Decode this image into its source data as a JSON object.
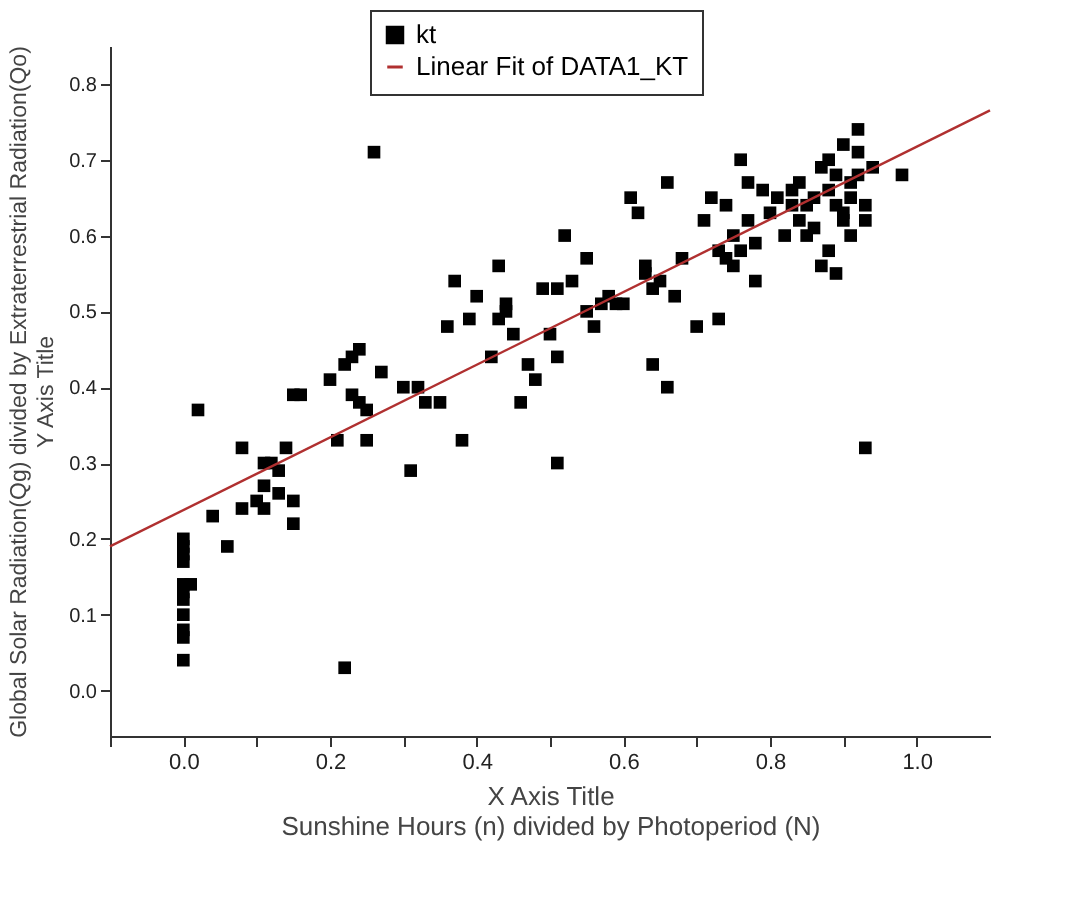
{
  "chart_data": {
    "type": "scatter",
    "xlabel": [
      "X Axis Title",
      "Sunshine Hours (n) divided by Photoperiod (N)"
    ],
    "ylabel": [
      "Global Solar Radiation(Qg) divided by Extraterrestrial Radiation(Qo)",
      "Y Axis Title"
    ],
    "xlim": [
      -0.1,
      1.1
    ],
    "ylim": [
      -0.06,
      0.85
    ],
    "xticks": [
      {
        "value": -0.1,
        "label": null
      },
      {
        "value": 0,
        "label": "0.0"
      },
      {
        "value": 0.1,
        "label": null
      },
      {
        "value": 0.2,
        "label": "0.2"
      },
      {
        "value": 0.3,
        "label": null
      },
      {
        "value": 0.4,
        "label": "0.4"
      },
      {
        "value": 0.5,
        "label": null
      },
      {
        "value": 0.6,
        "label": "0.6"
      },
      {
        "value": 0.7,
        "label": null
      },
      {
        "value": 0.8,
        "label": "0.8"
      },
      {
        "value": 0.9,
        "label": null
      },
      {
        "value": 1,
        "label": "1.0"
      }
    ],
    "yticks": [
      {
        "value": 0,
        "label": "0.0"
      },
      0.1,
      0.2,
      0.3,
      0.4,
      0.5,
      0.6,
      0.7,
      0.8
    ],
    "grid": false,
    "legend": "top",
    "series": [
      {
        "name": "kt",
        "type": "scatter",
        "marker": "square",
        "color": "#000000",
        "x": [
          0,
          0,
          0,
          0,
          0,
          0,
          0,
          0,
          0,
          0,
          0,
          0.01,
          0.02,
          0.04,
          0.06,
          0.08,
          0.08,
          0.1,
          0.11,
          0.11,
          0.11,
          0.12,
          0.13,
          0.13,
          0.14,
          0.15,
          0.15,
          0.15,
          0.16,
          0.2,
          0.21,
          0.22,
          0.23,
          0.24,
          0.22,
          0.23,
          0.24,
          0.25,
          0.25,
          0.26,
          0.27,
          0.3,
          0.31,
          0.32,
          0.33,
          0.35,
          0.36,
          0.37,
          0.38,
          0.39,
          0.4,
          0.42,
          0.43,
          0.43,
          0.44,
          0.44,
          0.45,
          0.46,
          0.47,
          0.48,
          0.49,
          0.5,
          0.51,
          0.51,
          0.51,
          0.52,
          0.53,
          0.55,
          0.55,
          0.56,
          0.57,
          0.58,
          0.59,
          0.6,
          0.61,
          0.62,
          0.63,
          0.63,
          0.64,
          0.64,
          0.65,
          0.66,
          0.66,
          0.67,
          0.68,
          0.7,
          0.71,
          0.72,
          0.73,
          0.73,
          0.74,
          0.74,
          0.75,
          0.75,
          0.76,
          0.76,
          0.77,
          0.77,
          0.78,
          0.78,
          0.79,
          0.8,
          0.81,
          0.82,
          0.83,
          0.83,
          0.84,
          0.84,
          0.85,
          0.85,
          0.86,
          0.86,
          0.87,
          0.87,
          0.88,
          0.88,
          0.88,
          0.89,
          0.89,
          0.89,
          0.9,
          0.9,
          0.9,
          0.91,
          0.91,
          0.91,
          0.92,
          0.92,
          0.92,
          0.93,
          0.93,
          0.93,
          0.94,
          0.98
        ],
        "values": [
          0.2,
          0.19,
          0.18,
          0.17,
          0.14,
          0.13,
          0.12,
          0.1,
          0.08,
          0.07,
          0.04,
          0.14,
          0.37,
          0.23,
          0.19,
          0.32,
          0.24,
          0.25,
          0.27,
          0.24,
          0.3,
          0.3,
          0.29,
          0.26,
          0.32,
          0.25,
          0.22,
          0.39,
          0.39,
          0.41,
          0.33,
          0.43,
          0.44,
          0.45,
          0.03,
          0.39,
          0.38,
          0.37,
          0.33,
          0.71,
          0.42,
          0.4,
          0.29,
          0.4,
          0.38,
          0.38,
          0.48,
          0.54,
          0.33,
          0.49,
          0.52,
          0.44,
          0.56,
          0.49,
          0.51,
          0.5,
          0.47,
          0.38,
          0.43,
          0.41,
          0.53,
          0.47,
          0.44,
          0.3,
          0.53,
          0.6,
          0.54,
          0.57,
          0.5,
          0.48,
          0.51,
          0.52,
          0.51,
          0.51,
          0.65,
          0.63,
          0.55,
          0.56,
          0.53,
          0.43,
          0.54,
          0.67,
          0.4,
          0.52,
          0.57,
          0.48,
          0.62,
          0.65,
          0.58,
          0.49,
          0.57,
          0.64,
          0.6,
          0.56,
          0.58,
          0.7,
          0.62,
          0.67,
          0.59,
          0.54,
          0.66,
          0.63,
          0.65,
          0.6,
          0.64,
          0.66,
          0.67,
          0.62,
          0.64,
          0.6,
          0.61,
          0.65,
          0.69,
          0.56,
          0.58,
          0.66,
          0.7,
          0.64,
          0.55,
          0.68,
          0.62,
          0.72,
          0.63,
          0.67,
          0.65,
          0.6,
          0.71,
          0.74,
          0.68,
          0.64,
          0.32,
          0.62,
          0.69,
          0.68
        ]
      },
      {
        "name": "Linear Fit of DATA1_KT",
        "type": "line",
        "color": "#b03030",
        "line_style": "solid",
        "x": [
          -0.1,
          1.1
        ],
        "values": [
          0.19,
          0.765
        ]
      }
    ]
  }
}
